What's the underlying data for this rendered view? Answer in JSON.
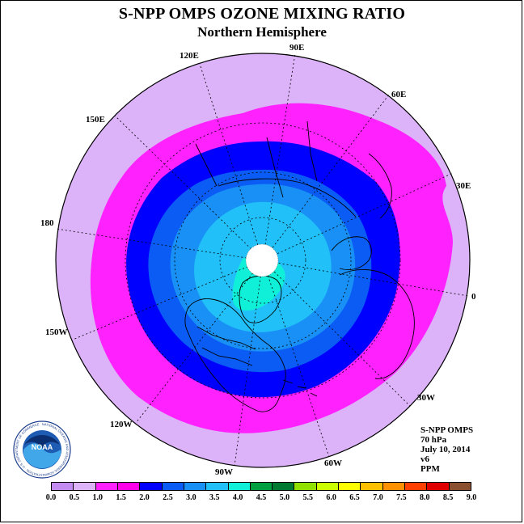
{
  "title": "S-NPP OMPS OZONE MIXING RATIO",
  "subtitle": "Northern Hemisphere",
  "longitude_labels": [
    {
      "label": "90E",
      "lon": 90
    },
    {
      "label": "60E",
      "lon": 60
    },
    {
      "label": "30E",
      "lon": 30
    },
    {
      "label": "0",
      "lon": 0
    },
    {
      "label": "30W",
      "lon": -30
    },
    {
      "label": "60W",
      "lon": -60
    },
    {
      "label": "90W",
      "lon": -90
    },
    {
      "label": "120W",
      "lon": -120
    },
    {
      "label": "150W",
      "lon": -150
    },
    {
      "label": "180",
      "lon": 180
    },
    {
      "label": "150E",
      "lon": 150
    },
    {
      "label": "120E",
      "lon": 120
    }
  ],
  "info": {
    "instrument": "S-NPP OMPS",
    "level": "70 hPa",
    "date": "July 10, 2014",
    "version": "v6",
    "units": "PPM"
  },
  "logo": {
    "text": "NOAA",
    "ring_text": "NATIONAL OCEANIC AND ATMOSPHERIC ADMINISTRATION · U.S. DEPARTMENT OF COMMERCE"
  },
  "colorbar": {
    "ticks": [
      "0.0",
      "0.5",
      "1.0",
      "1.5",
      "2.0",
      "2.5",
      "3.0",
      "3.5",
      "4.0",
      "4.5",
      "5.0",
      "5.5",
      "6.0",
      "6.5",
      "7.0",
      "7.5",
      "8.0",
      "8.5",
      "9.0"
    ],
    "colors": [
      "#c38bf2",
      "#dcb2f8",
      "#ff22ff",
      "#ff00e8",
      "#0000ff",
      "#0a5cf5",
      "#1990f5",
      "#21c0f8",
      "#10f0d8",
      "#00a040",
      "#007a30",
      "#90e000",
      "#ccff00",
      "#ffff00",
      "#ffc000",
      "#ff9000",
      "#ff4000",
      "#e00000",
      "#8b5030"
    ]
  },
  "chart_data": {
    "type": "heatmap",
    "title": "S-NPP OMPS OZONE MIXING RATIO",
    "subtitle": "Northern Hemisphere",
    "projection": "north polar stereographic",
    "variable": "ozone mixing ratio",
    "units": "PPM",
    "pressure_level": "70 hPa",
    "date": "July 10, 2014",
    "scale_range": [
      0.0,
      9.0
    ],
    "contour_levels": [
      0.0,
      0.5,
      1.0,
      1.5,
      2.0,
      2.5,
      3.0,
      3.5,
      4.0,
      4.5,
      5.0,
      5.5,
      6.0,
      6.5,
      7.0,
      7.5,
      8.0,
      8.5,
      9.0
    ],
    "description": "Ozone mixing ratio increases poleward: about 0.5-1.0 ppm in the tropics, 1.0-1.5 in the subtropics, 1.5-2.0 at mid latitudes, 2.0-3.5 in the high latitudes, and up to about 3.5-4.0 over the Arctic near Greenland; white (no data) at the pole."
  }
}
